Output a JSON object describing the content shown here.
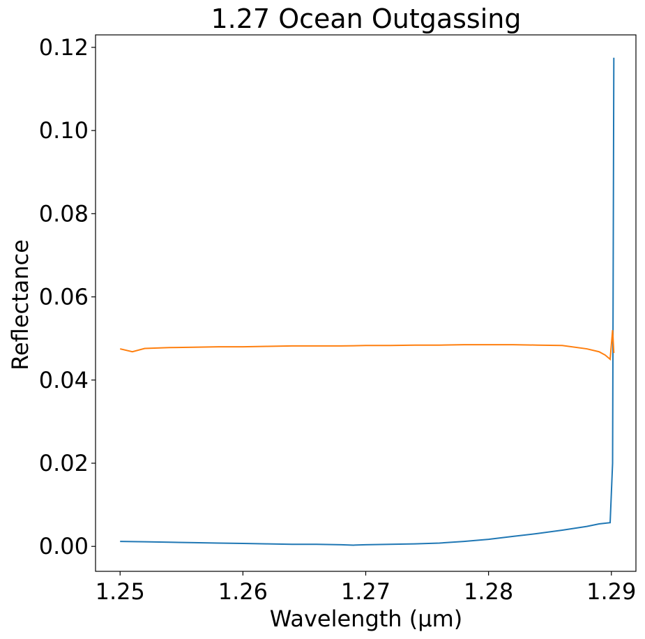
{
  "chart_data": {
    "type": "line",
    "title": "1.27 Ocean Outgassing",
    "xlabel": "Wavelength (μm)",
    "ylabel": "Reflectance",
    "xlim": [
      1.248,
      1.292
    ],
    "ylim": [
      -0.006,
      0.123
    ],
    "x_ticks": [
      1.25,
      1.26,
      1.27,
      1.28,
      1.29
    ],
    "x_tick_labels": [
      "1.25",
      "1.26",
      "1.27",
      "1.28",
      "1.29"
    ],
    "y_ticks": [
      0.0,
      0.02,
      0.04,
      0.06,
      0.08,
      0.1,
      0.12
    ],
    "y_tick_labels": [
      "0.00",
      "0.02",
      "0.04",
      "0.06",
      "0.08",
      "0.10",
      "0.12"
    ],
    "grid": false,
    "legend": "none",
    "series": [
      {
        "color": "#1f77b4",
        "x": [
          1.25,
          1.252,
          1.254,
          1.256,
          1.258,
          1.26,
          1.262,
          1.264,
          1.266,
          1.268,
          1.269,
          1.27,
          1.272,
          1.274,
          1.276,
          1.278,
          1.28,
          1.282,
          1.284,
          1.286,
          1.288,
          1.289,
          1.2899,
          1.2901,
          1.2902
        ],
        "values": [
          0.0012,
          0.0011,
          0.001,
          0.0009,
          0.0008,
          0.0007,
          0.0006,
          0.0005,
          0.0005,
          0.0004,
          0.0003,
          0.0004,
          0.0005,
          0.0006,
          0.0008,
          0.0012,
          0.0017,
          0.0024,
          0.0031,
          0.0039,
          0.0048,
          0.0054,
          0.0057,
          0.02,
          0.1175
        ]
      },
      {
        "color": "#ff7f0e",
        "x": [
          1.25,
          1.251,
          1.252,
          1.254,
          1.256,
          1.258,
          1.26,
          1.262,
          1.264,
          1.266,
          1.268,
          1.27,
          1.272,
          1.274,
          1.276,
          1.278,
          1.28,
          1.282,
          1.284,
          1.286,
          1.288,
          1.289,
          1.2895,
          1.2899,
          1.2901,
          1.2902
        ],
        "values": [
          0.0475,
          0.0468,
          0.0476,
          0.0478,
          0.0479,
          0.048,
          0.048,
          0.0481,
          0.0482,
          0.0482,
          0.0482,
          0.0483,
          0.0483,
          0.0484,
          0.0484,
          0.0485,
          0.0485,
          0.0485,
          0.0484,
          0.0483,
          0.0475,
          0.0468,
          0.046,
          0.045,
          0.052,
          0.0465
        ]
      }
    ]
  }
}
